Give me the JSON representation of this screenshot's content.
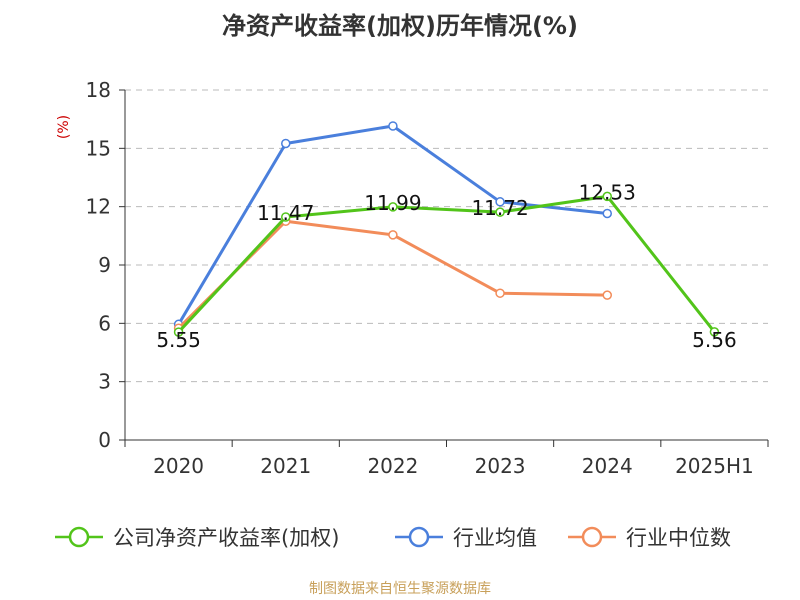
{
  "title": "净资产收益率(加权)历年情况(%)",
  "source": "制图数据来自恒生聚源数据库",
  "chart_data": {
    "type": "line",
    "title": "净资产收益率(加权)历年情况(%)",
    "ylabel": "(%)",
    "xlabel": "",
    "ylim": [
      0,
      18
    ],
    "yticks": [
      0,
      3,
      6,
      9,
      12,
      15,
      18
    ],
    "categories": [
      "2020",
      "2021",
      "2022",
      "2023",
      "2024",
      "2025H1"
    ],
    "grid": true,
    "legend_position": "bottom",
    "series": [
      {
        "name": "公司净资产收益率(加权)",
        "color": "#52c41a",
        "values": [
          5.55,
          11.47,
          11.99,
          11.72,
          12.53,
          5.56
        ],
        "labeled": true
      },
      {
        "name": "行业均值",
        "color": "#4a7fdc",
        "values": [
          5.95,
          15.25,
          16.15,
          12.25,
          11.65,
          null
        ],
        "labeled": false
      },
      {
        "name": "行业中位数",
        "color": "#f28c5a",
        "values": [
          5.75,
          11.25,
          10.55,
          7.55,
          7.45,
          null
        ],
        "labeled": false
      }
    ]
  }
}
